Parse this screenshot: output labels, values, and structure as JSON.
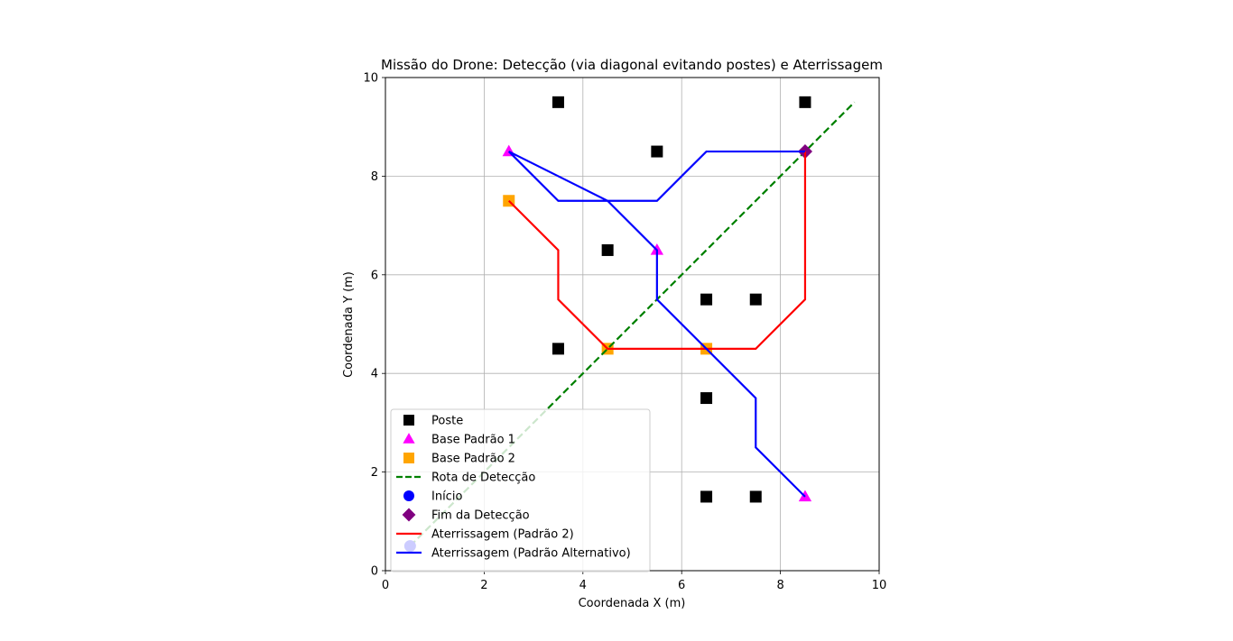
{
  "chart_data": {
    "type": "scatter",
    "title": "Missão do Drone: Detecção (via diagonal evitando postes) e Aterrissagem",
    "xlabel": "Coordenada X (m)",
    "ylabel": "Coordenada Y (m)",
    "xlim": [
      0,
      10
    ],
    "ylim": [
      0,
      10
    ],
    "xticks": [
      "0",
      "2",
      "4",
      "6",
      "8",
      "10"
    ],
    "yticks": [
      "0",
      "2",
      "4",
      "6",
      "8",
      "10"
    ],
    "grid": true,
    "legend_position": "lower-left",
    "series": [
      {
        "name": "Poste",
        "kind": "marker",
        "marker": "square",
        "color": "#000000",
        "points": [
          [
            3.5,
            9.5
          ],
          [
            8.5,
            9.5
          ],
          [
            5.5,
            8.5
          ],
          [
            4.5,
            6.5
          ],
          [
            6.5,
            5.5
          ],
          [
            7.5,
            5.5
          ],
          [
            3.5,
            4.5
          ],
          [
            6.5,
            3.5
          ],
          [
            6.5,
            1.5
          ],
          [
            7.5,
            1.5
          ]
        ]
      },
      {
        "name": "Base Padrão 1",
        "kind": "marker",
        "marker": "triangle",
        "color": "#ff00ff",
        "points": [
          [
            2.5,
            8.5
          ],
          [
            5.5,
            6.5
          ],
          [
            8.5,
            1.5
          ]
        ]
      },
      {
        "name": "Base Padrão 2",
        "kind": "marker",
        "marker": "square",
        "color": "#ffa500",
        "points": [
          [
            2.5,
            7.5
          ],
          [
            4.5,
            4.5
          ],
          [
            6.5,
            4.5
          ]
        ]
      },
      {
        "name": "Rota de Detecção",
        "kind": "line",
        "dash": true,
        "color": "#008000",
        "points": [
          [
            0.5,
            0.5
          ],
          [
            9.5,
            9.5
          ]
        ]
      },
      {
        "name": "Início",
        "kind": "marker",
        "marker": "circle",
        "color": "#0000ff",
        "points": [
          [
            0.5,
            0.5
          ]
        ]
      },
      {
        "name": "Fim da Detecção",
        "kind": "marker",
        "marker": "diamond",
        "color": "#800080",
        "points": [
          [
            8.5,
            8.5
          ]
        ]
      },
      {
        "name": "Aterrissagem (Padrão 2)",
        "kind": "line",
        "dash": false,
        "color": "#ff0000",
        "points": [
          [
            8.5,
            8.5
          ],
          [
            8.5,
            5.5
          ],
          [
            7.5,
            4.5
          ],
          [
            4.5,
            4.5
          ],
          [
            3.5,
            5.5
          ],
          [
            3.5,
            6.5
          ],
          [
            2.5,
            7.5
          ]
        ]
      },
      {
        "name": "Aterrissagem (Padrão Alternativo)",
        "kind": "line",
        "dash": false,
        "color": "#0000ff",
        "points": [
          [
            8.5,
            8.5
          ],
          [
            6.5,
            8.5
          ],
          [
            5.5,
            7.5
          ],
          [
            3.5,
            7.5
          ],
          [
            2.5,
            8.5
          ],
          [
            4.5,
            7.5
          ],
          [
            5.5,
            6.5
          ],
          [
            5.5,
            5.5
          ],
          [
            7.5,
            3.5
          ],
          [
            7.5,
            2.5
          ],
          [
            8.5,
            1.5
          ]
        ]
      }
    ]
  }
}
